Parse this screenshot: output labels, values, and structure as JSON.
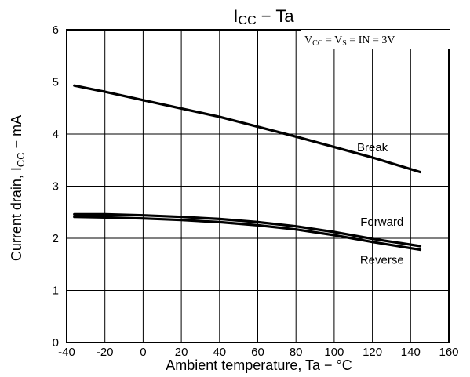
{
  "chart_data": {
    "type": "line",
    "title": "I",
    "title_sub": "CC",
    "title_rest": " − Ta",
    "annotation": {
      "p1": "V",
      "p1_sub": "CC",
      "p2": " = V",
      "p2_sub": "S",
      "p3": " = IN = 3V"
    },
    "xlabel": "Ambient temperature, Ta − °C",
    "ylabel_main": "Current drain, I",
    "ylabel_sub": "CC",
    "ylabel_rest": " − mA",
    "xlim": [
      -40,
      160
    ],
    "ylim": [
      0,
      6
    ],
    "xticks": [
      "-40",
      "-20",
      "0",
      "20",
      "40",
      "60",
      "80",
      "100",
      "120",
      "140",
      "160"
    ],
    "yticks": [
      "0",
      "1",
      "2",
      "3",
      "4",
      "5",
      "6"
    ],
    "grid": true,
    "series": [
      {
        "name": "Break",
        "x": [
          -36,
          -20,
          0,
          20,
          40,
          60,
          80,
          100,
          120,
          145
        ],
        "values": [
          4.93,
          4.81,
          4.65,
          4.49,
          4.33,
          4.14,
          3.95,
          3.75,
          3.55,
          3.27
        ]
      },
      {
        "name": "Forward",
        "x": [
          -36,
          -20,
          0,
          20,
          40,
          60,
          80,
          100,
          120,
          145
        ],
        "values": [
          2.46,
          2.46,
          2.44,
          2.41,
          2.37,
          2.31,
          2.23,
          2.12,
          1.99,
          1.85
        ]
      },
      {
        "name": "Reverse",
        "x": [
          -36,
          -20,
          0,
          20,
          40,
          60,
          80,
          100,
          120,
          145
        ],
        "values": [
          2.41,
          2.4,
          2.38,
          2.35,
          2.31,
          2.25,
          2.17,
          2.06,
          1.93,
          1.78
        ]
      }
    ]
  }
}
